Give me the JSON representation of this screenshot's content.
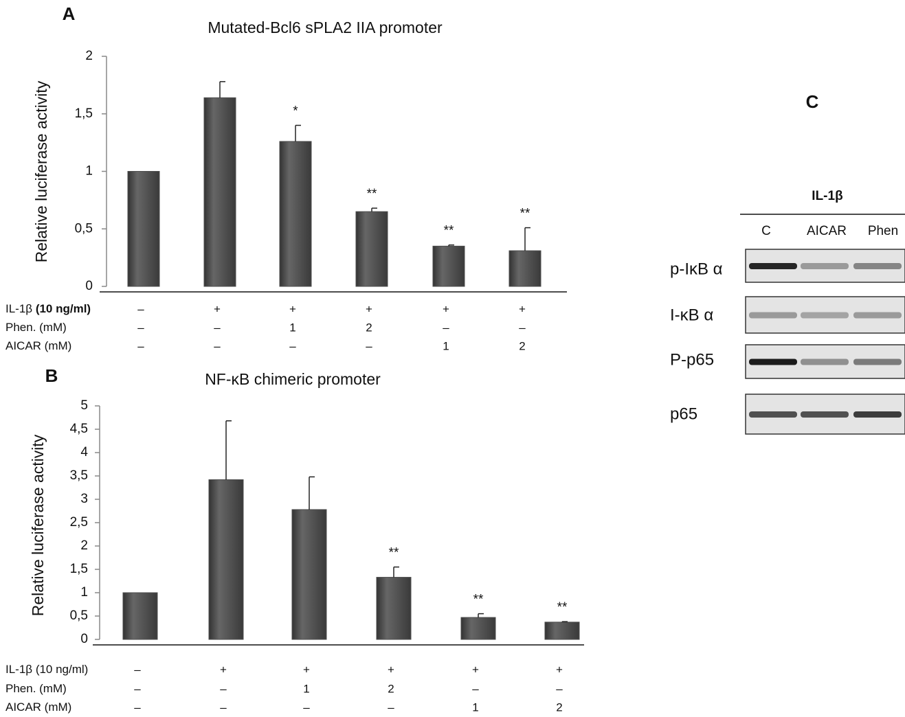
{
  "chart_data": [
    {
      "type": "bar",
      "panel": "A",
      "title": "Mutated-Bcl6 sPLA2 IIA promoter",
      "y_label": "Relative luciferase activity",
      "values": [
        1,
        1.64,
        1.26,
        0.65,
        0.35,
        0.31
      ],
      "errors": [
        null,
        0.14,
        0.14,
        0.03,
        0.01,
        0.2
      ],
      "significance": [
        null,
        null,
        "*",
        "**",
        "**",
        "**"
      ],
      "color": "#4d4d4d",
      "ylim": [
        0,
        2
      ],
      "yticks": [
        0,
        {
          "value": 0.5,
          "label": "0,5"
        },
        1,
        {
          "value": 1.5,
          "label": "1,5"
        },
        2
      ],
      "conditions": [
        {
          "label": "IL-1β",
          "label_note": "(10 ng/ml)",
          "values": [
            "–",
            "+",
            "+",
            "+",
            "+",
            "+"
          ]
        },
        {
          "label": "Phen. (mM)",
          "values": [
            "–",
            "–",
            "1",
            "2",
            "–",
            "–"
          ]
        },
        {
          "label": "AICAR (mM)",
          "values": [
            "–",
            "–",
            "–",
            "–",
            "1",
            "2"
          ]
        }
      ]
    },
    {
      "type": "bar",
      "panel": "B",
      "title": "NF-κB chimeric promoter",
      "y_label": "Relative luciferase activity",
      "values": [
        1,
        3.42,
        2.78,
        1.33,
        0.47,
        0.37
      ],
      "errors": [
        null,
        1.26,
        0.7,
        0.22,
        0.08,
        0.01
      ],
      "significance": [
        null,
        null,
        null,
        "**",
        "**",
        "**"
      ],
      "color": "#4d4d4d",
      "ylim": [
        0,
        5
      ],
      "yticks": [
        0,
        {
          "value": 0.5,
          "label": "0,5"
        },
        1,
        {
          "value": 1.5,
          "label": "1,5"
        },
        2,
        {
          "value": 2.5,
          "label": "2,5"
        },
        3,
        {
          "value": 3.5,
          "label": "3,5"
        },
        4,
        {
          "value": 4.5,
          "label": "4,5"
        },
        5
      ],
      "conditions": [
        {
          "label": "IL-1β",
          "label_note": "(10 ng/ml)",
          "values": [
            "–",
            "+",
            "+",
            "+",
            "+",
            "+"
          ]
        },
        {
          "label": "Phen. (mM)",
          "values": [
            "–",
            "–",
            "1",
            "2",
            "–",
            "–"
          ]
        },
        {
          "label": "AICAR (mM)",
          "values": [
            "–",
            "–",
            "–",
            "–",
            "1",
            "2"
          ]
        }
      ]
    }
  ],
  "blot": {
    "panel": "C",
    "group": "IL-1β",
    "lanes": [
      "C",
      "AICAR",
      "Phen"
    ],
    "rows": [
      "p-IκB α",
      "I-κB α",
      "P-p65",
      "p65"
    ]
  }
}
